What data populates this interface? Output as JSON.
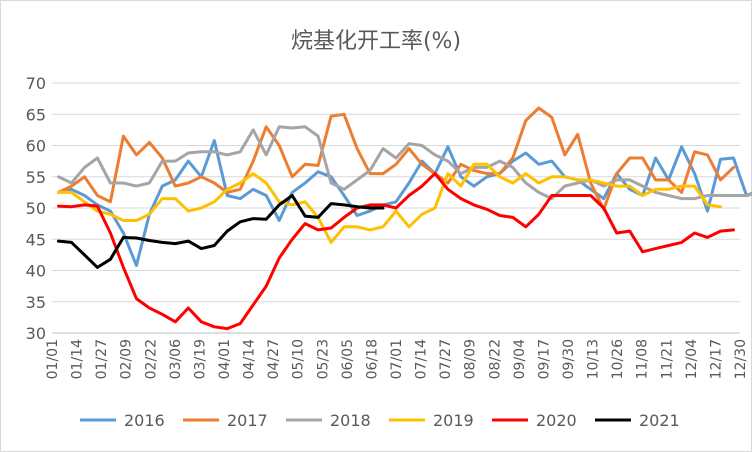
{
  "chart_data": {
    "type": "line",
    "title": "烷基化开工率(%)",
    "xlabel": "",
    "ylabel": "",
    "ylim": [
      30,
      70
    ],
    "yticks": [
      30,
      35,
      40,
      45,
      50,
      55,
      60,
      65,
      70
    ],
    "x_ticklabels": [
      "01/01",
      "01/14",
      "01/27",
      "02/09",
      "02/22",
      "03/06",
      "03/19",
      "04/01",
      "04/14",
      "04/27",
      "05/10",
      "05/23",
      "06/05",
      "06/18",
      "07/01",
      "07/14",
      "07/27",
      "08/09",
      "08/22",
      "09/04",
      "09/17",
      "09/30",
      "10/13",
      "10/26",
      "11/08",
      "11/21",
      "12/04",
      "12/17",
      "12/30"
    ],
    "grid": "horizontal",
    "legend_position": "bottom",
    "series": [
      {
        "name": "2016",
        "color": "#5B9BD5",
        "values": [
          52.5,
          53.0,
          52.0,
          50.5,
          49.5,
          46.0,
          40.8,
          49.0,
          53.5,
          54.5,
          57.5,
          55.0,
          60.8,
          52.0,
          51.5,
          53.0,
          52.0,
          48.0,
          52.5,
          54.0,
          55.8,
          55.0,
          52.0,
          48.8,
          49.5,
          50.5,
          51.0,
          54.0,
          57.5,
          55.5,
          59.8,
          55.0,
          53.5,
          55.0,
          55.5,
          57.5,
          58.8,
          57.0,
          57.5,
          55.0,
          54.5,
          53.0,
          51.5,
          55.5,
          53.0,
          52.0,
          58.0,
          54.5,
          59.8,
          55.5,
          49.5,
          57.8,
          58.0,
          52.0,
          52.8
        ]
      },
      {
        "name": "2017",
        "color": "#ED7D31",
        "values": [
          52.5,
          53.5,
          55.0,
          52.0,
          51.0,
          61.5,
          58.5,
          60.5,
          58.0,
          53.5,
          54.0,
          55.0,
          54.0,
          52.5,
          53.0,
          57.5,
          63.0,
          60.0,
          55.0,
          57.0,
          56.8,
          64.7,
          65.0,
          59.5,
          55.5,
          55.5,
          57.0,
          59.5,
          57.0,
          55.5,
          54.0,
          57.0,
          56.0,
          55.5,
          55.5,
          58.0,
          64.0,
          66.0,
          64.5,
          58.5,
          61.8,
          54.0,
          49.8,
          55.5,
          58.0,
          58.0,
          54.5,
          54.5,
          52.5,
          59.0,
          58.5,
          54.5,
          56.5
        ]
      },
      {
        "name": "2018",
        "color": "#A5A5A5",
        "values": [
          55.0,
          54.0,
          56.5,
          58.0,
          54.0,
          54.0,
          53.5,
          54.0,
          57.5,
          57.5,
          58.8,
          59.0,
          59.0,
          58.5,
          59.0,
          62.5,
          58.5,
          63.0,
          62.8,
          63.0,
          61.5,
          54.0,
          53.0,
          54.5,
          56.0,
          59.5,
          58.0,
          60.3,
          60.0,
          58.5,
          57.5,
          55.5,
          56.5,
          56.5,
          57.5,
          56.5,
          54.0,
          52.5,
          51.5,
          53.5,
          54.0,
          54.5,
          53.5,
          54.5,
          54.5,
          53.5,
          52.5,
          52.0,
          51.5,
          51.5,
          52.0,
          52.0,
          52.0,
          52.0,
          52.5
        ]
      },
      {
        "name": "2019",
        "color": "#FFC000",
        "values": [
          52.5,
          52.5,
          51.0,
          49.5,
          49.0,
          48.0,
          48.0,
          49.0,
          51.5,
          51.5,
          49.5,
          50.0,
          51.0,
          53.0,
          54.0,
          55.5,
          54.0,
          51.0,
          50.5,
          51.0,
          48.5,
          44.5,
          47.0,
          47.0,
          46.5,
          47.0,
          49.5,
          47.0,
          49.0,
          50.0,
          55.5,
          53.5,
          57.0,
          57.0,
          55.0,
          54.0,
          55.5,
          54.0,
          55.0,
          55.0,
          54.5,
          54.5,
          54.0,
          53.5,
          53.5,
          52.0,
          53.0,
          53.0,
          53.5,
          53.5,
          50.5,
          50.2
        ]
      },
      {
        "name": "2020",
        "color": "#FF0000",
        "values": [
          50.3,
          50.2,
          50.5,
          50.3,
          46.0,
          40.5,
          35.5,
          34.0,
          33.0,
          31.8,
          34.0,
          31.8,
          31.0,
          30.7,
          31.5,
          34.5,
          37.5,
          42.0,
          45.0,
          47.5,
          46.5,
          46.8,
          48.5,
          50.0,
          50.5,
          50.5,
          50.0,
          52.0,
          53.5,
          55.5,
          53.0,
          51.5,
          50.5,
          49.8,
          48.8,
          48.5,
          47.0,
          49.0,
          52.0,
          52.0,
          52.0,
          52.0,
          50.0,
          46.0,
          46.3,
          43.0,
          43.5,
          44.0,
          44.5,
          46.0,
          45.3,
          46.3,
          46.5
        ]
      },
      {
        "name": "2021",
        "color": "#000000",
        "values": [
          44.7,
          44.5,
          42.5,
          40.5,
          41.8,
          45.3,
          45.2,
          44.8,
          44.5,
          44.3,
          44.7,
          43.5,
          44.0,
          46.3,
          47.8,
          48.3,
          48.2,
          50.5,
          52.0,
          48.7,
          48.5,
          50.7,
          50.5,
          50.2,
          50.0,
          50.0
        ]
      }
    ]
  }
}
